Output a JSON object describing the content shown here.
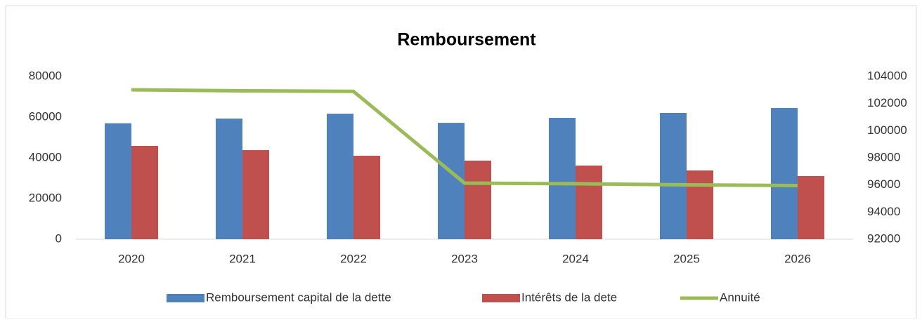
{
  "chart_data": {
    "type": "bar_line",
    "title": "Remboursement",
    "categories": [
      "2020",
      "2021",
      "2022",
      "2023",
      "2024",
      "2025",
      "2026"
    ],
    "series": [
      {
        "name": "Remboursement capital de la dette",
        "color": "#4f81bd",
        "type": "bar",
        "axis": "y",
        "values": [
          57000,
          59300,
          61700,
          57200,
          59650,
          62070,
          64480
        ]
      },
      {
        "name": "Intérêts de la dete",
        "color": "#c0504d",
        "type": "bar",
        "axis": "y",
        "values": [
          45860,
          43800,
          41030,
          38620,
          36200,
          33800,
          31030
        ]
      },
      {
        "name": "Annuité",
        "color": "#9bbb59",
        "type": "line",
        "axis": "y2",
        "values": [
          103017,
          102940,
          102900,
          96138,
          96090,
          96010,
          95960
        ]
      }
    ],
    "ylim": [
      0,
      80000
    ],
    "yticks": [
      0,
      20000,
      40000,
      60000,
      80000
    ],
    "y2lim": [
      92000,
      104000
    ],
    "y2ticks": [
      92000,
      94000,
      96000,
      98000,
      100000,
      102000,
      104000
    ],
    "grid": false,
    "legend": "bottom"
  }
}
